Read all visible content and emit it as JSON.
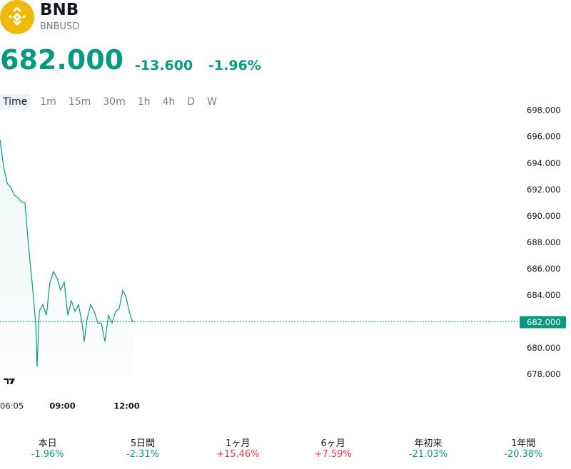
{
  "header": {
    "title": "BNB",
    "subtitle": "BNBUSD",
    "price": "682.000",
    "change": "-13.600",
    "change_percent": "-1.96%"
  },
  "tabs": [
    "Time",
    "1m",
    "15m",
    "30m",
    "1h",
    "4h",
    "D",
    "W"
  ],
  "periods": [
    {
      "name": "本日",
      "value": "-1.96%"
    },
    {
      "name": "5日間",
      "value": "-2.31%"
    },
    {
      "name": "1ヶ月",
      "value": "+15.46%"
    },
    {
      "name": "6ヶ月",
      "value": "+7.59%"
    },
    {
      "name": "年初来",
      "value": "-21.03%"
    },
    {
      "name": "1年間",
      "value": "-20.38%"
    }
  ],
  "chart_data": {
    "type": "area",
    "color": "#089981",
    "x": [
      "06:05",
      "06:15",
      "06:25",
      "06:35",
      "06:45",
      "06:55",
      "07:05",
      "07:15",
      "07:25",
      "07:35",
      "07:45",
      "07:49",
      "07:55",
      "08:05",
      "08:15",
      "08:25",
      "08:35",
      "08:45",
      "08:55",
      "09:05",
      "09:15",
      "09:25",
      "09:35",
      "09:45",
      "09:55",
      "10:01",
      "10:09",
      "10:19",
      "10:29",
      "10:39",
      "10:49",
      "10:59",
      "11:09",
      "11:19",
      "11:29",
      "11:39",
      "11:49",
      "11:59",
      "12:07",
      "12:15",
      "12:19"
    ],
    "values": [
      695.8,
      693.8,
      692.5,
      692.2,
      691.6,
      691.4,
      691.1,
      691.0,
      687.7,
      685.0,
      681.9,
      678.6,
      682.8,
      683.3,
      682.5,
      685.0,
      685.8,
      685.3,
      684.4,
      685.0,
      682.5,
      683.6,
      682.8,
      683.3,
      681.9,
      680.5,
      682.2,
      683.3,
      682.8,
      681.9,
      681.9,
      680.5,
      682.5,
      681.9,
      682.8,
      683.0,
      684.4,
      683.8,
      682.8,
      682.1,
      682.0
    ],
    "ylim": [
      676.95,
      698.55
    ],
    "yticks": [
      {
        "value": 678,
        "label": "678.000"
      },
      {
        "value": 680,
        "label": "680.000"
      },
      {
        "value": 682,
        "label": "682.000"
      },
      {
        "value": 684,
        "label": "684.000"
      },
      {
        "value": 686,
        "label": "686.000"
      },
      {
        "value": 688,
        "label": "688.000"
      },
      {
        "value": 690,
        "label": "690.000"
      },
      {
        "value": 692,
        "label": "692.000"
      },
      {
        "value": 694,
        "label": "694.000"
      },
      {
        "value": 696,
        "label": "696.000"
      },
      {
        "value": 698,
        "label": "698.000"
      }
    ],
    "xticks": [
      "06:05",
      "09:00",
      "12:00"
    ],
    "last_value": 682,
    "last_value_label": "682.000"
  }
}
